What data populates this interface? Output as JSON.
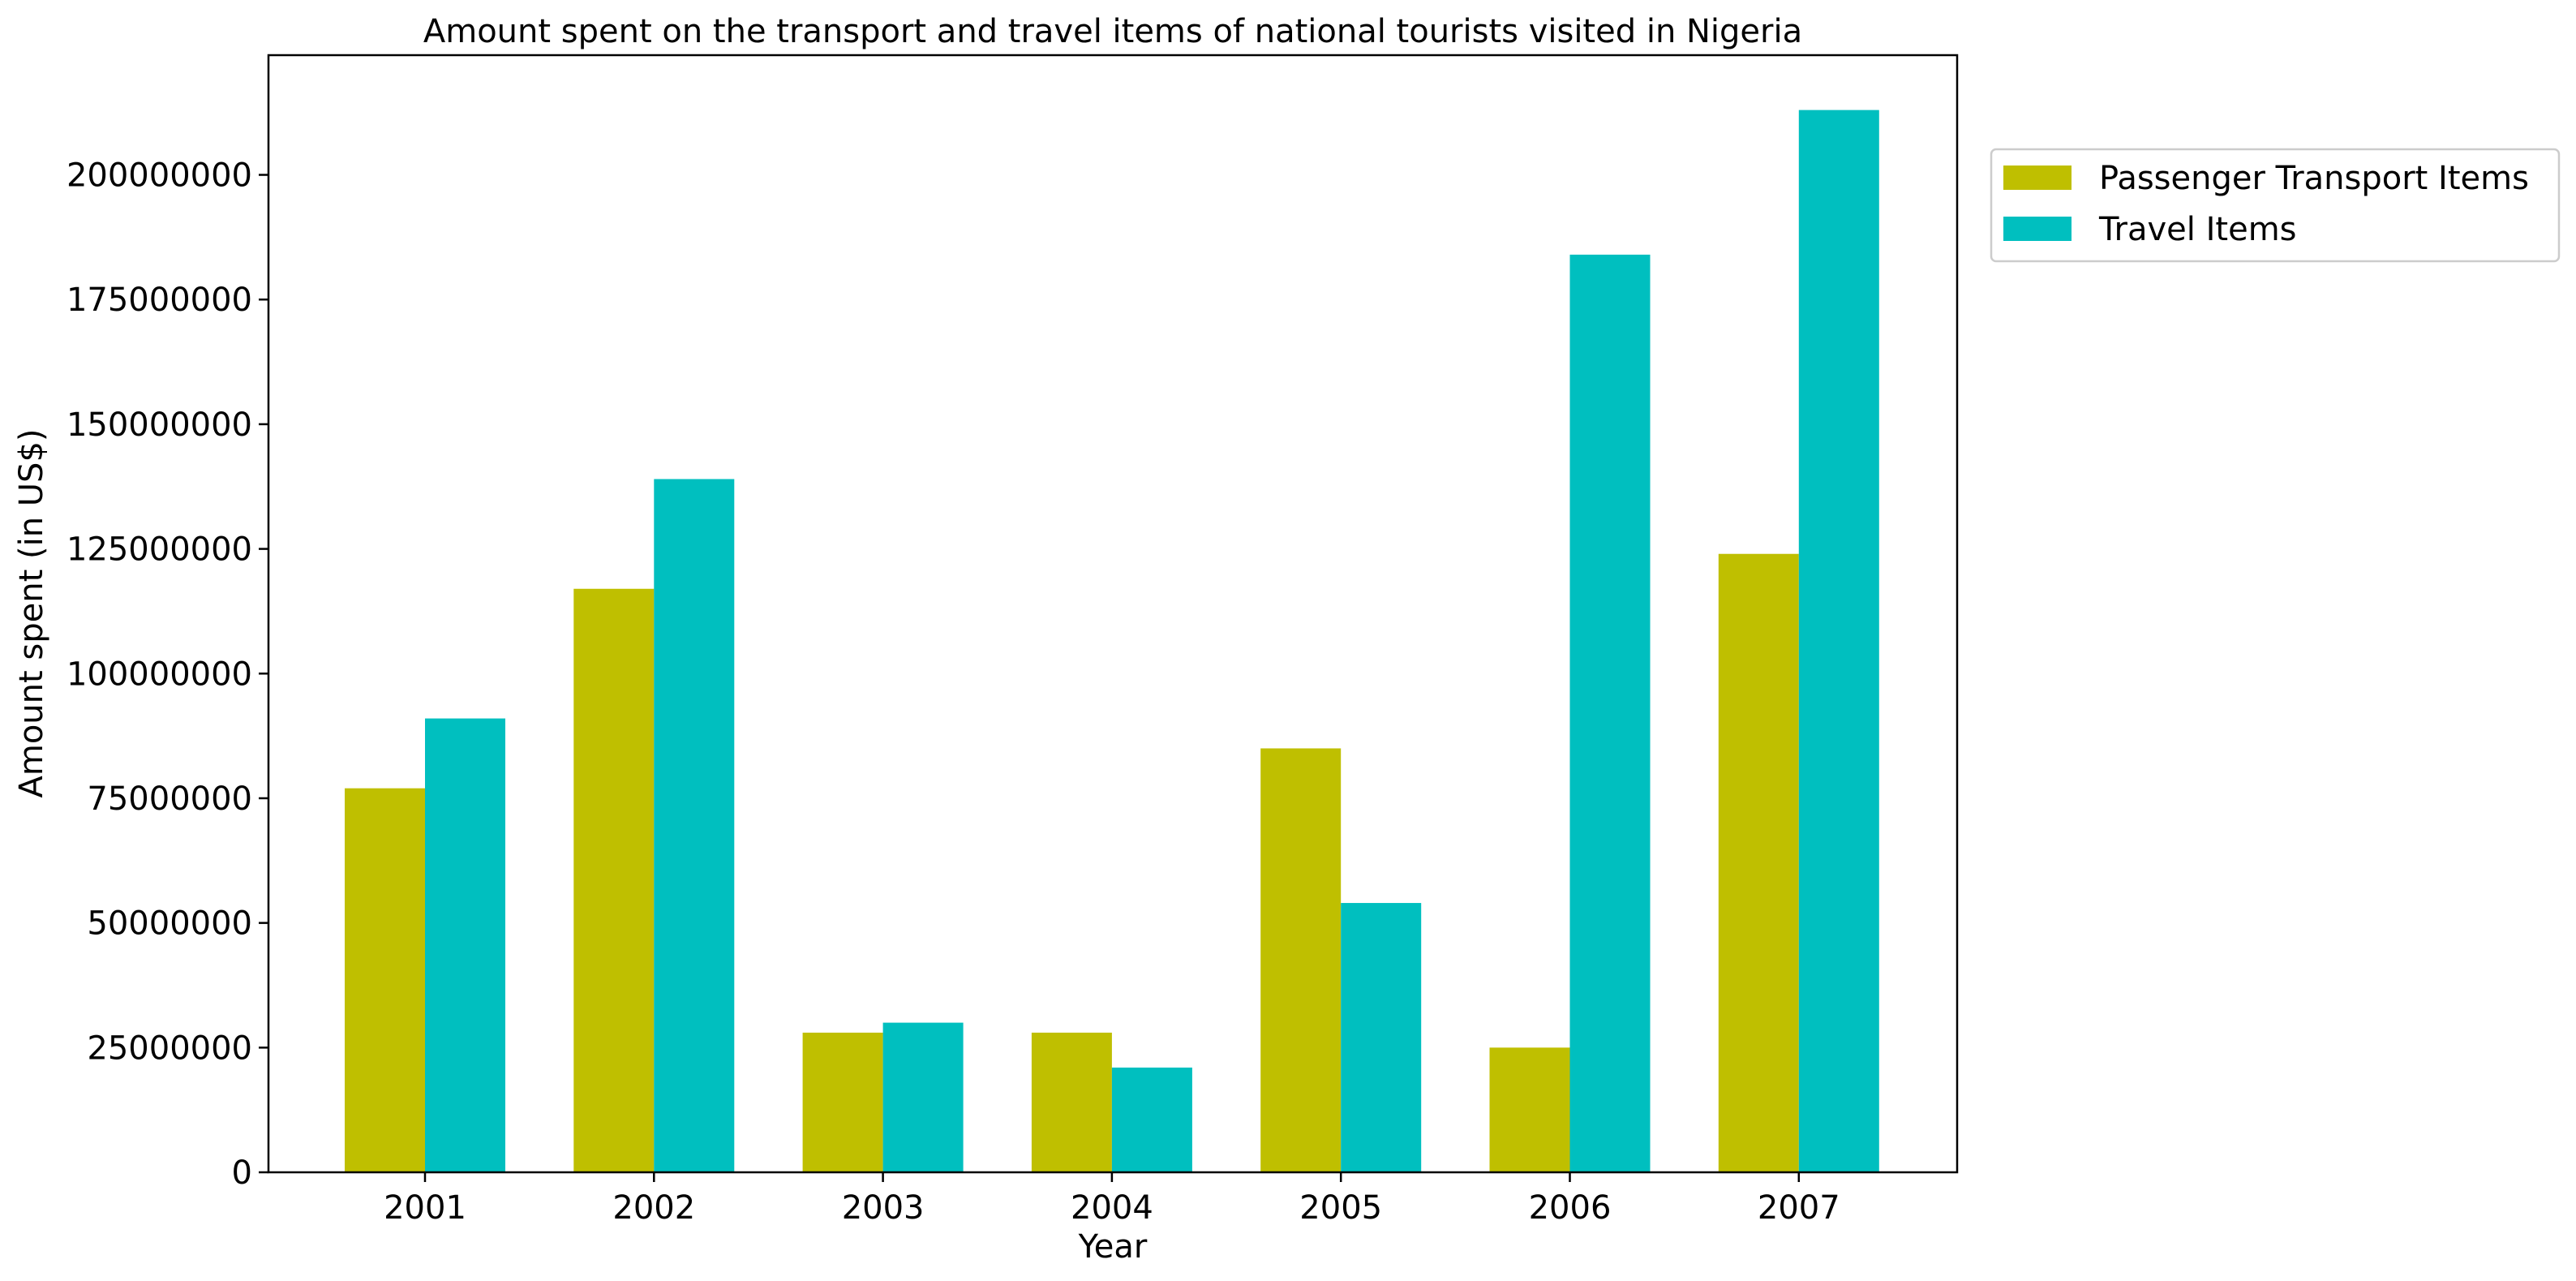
{
  "chart_data": {
    "type": "bar",
    "title": "Amount spent on the transport and travel items of national tourists visited in Nigeria",
    "xlabel": "Year",
    "ylabel": "Amount spent (in US$)",
    "categories": [
      "2001",
      "2002",
      "2003",
      "2004",
      "2005",
      "2006",
      "2007"
    ],
    "series": [
      {
        "name": "Passenger Transport Items",
        "color": "#bfbf00",
        "values": [
          77000000,
          117000000,
          28000000,
          28000000,
          85000000,
          25000000,
          124000000
        ]
      },
      {
        "name": "Travel Items",
        "color": "#00bfbf",
        "values": [
          91000000,
          139000000,
          30000000,
          21000000,
          54000000,
          184000000,
          213000000
        ]
      }
    ],
    "ylim": [
      0,
      224000000
    ],
    "yticks": [
      0,
      25000000,
      50000000,
      75000000,
      100000000,
      125000000,
      150000000,
      175000000,
      200000000
    ],
    "ytick_labels": [
      "0",
      "25000000",
      "50000000",
      "75000000",
      "100000000",
      "125000000",
      "150000000",
      "175000000",
      "200000000"
    ],
    "grid": false,
    "legend_position": "outside-top-right"
  }
}
